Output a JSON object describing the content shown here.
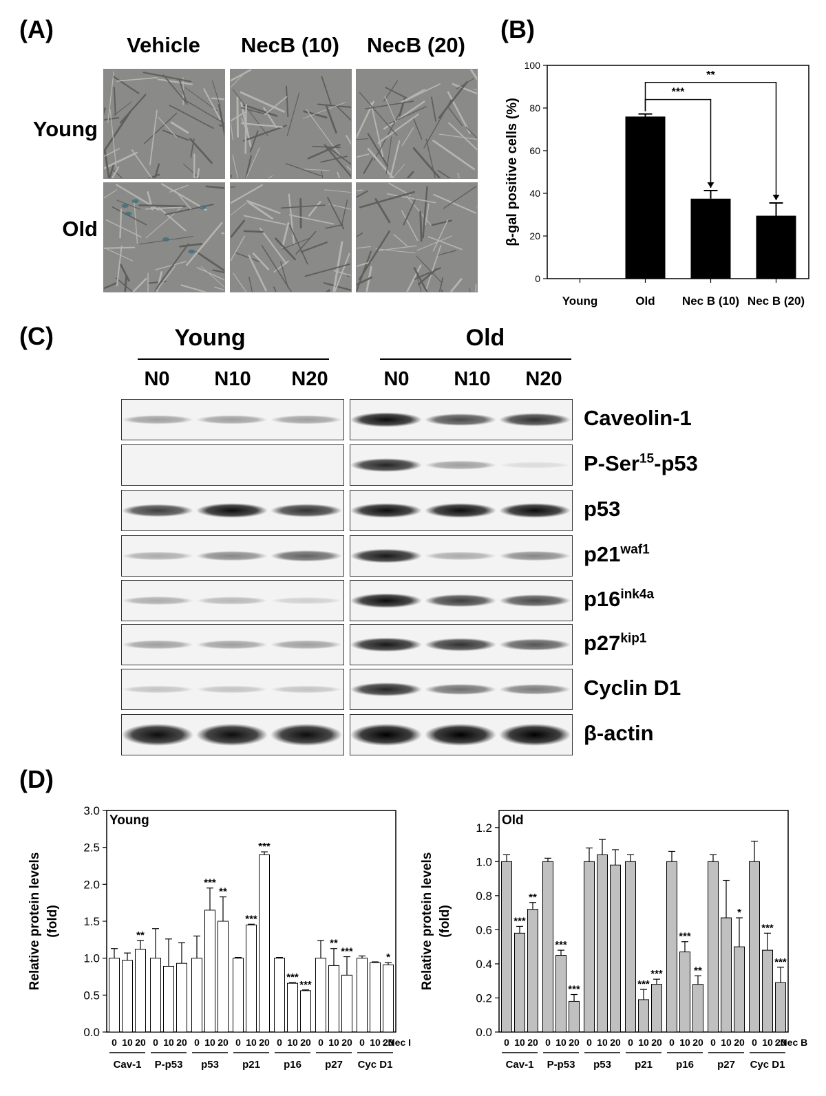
{
  "panelA": {
    "label": "(A)",
    "columns": [
      "Vehicle",
      "NecB (10)",
      "NecB (20)"
    ],
    "rows": [
      "Young",
      "Old"
    ]
  },
  "panelB": {
    "label": "(B)"
  },
  "panelC": {
    "label": "(C)",
    "groups": [
      "Young",
      "Old"
    ],
    "lanes": [
      "N0",
      "N10",
      "N20"
    ],
    "proteins": [
      {
        "base": "Caveolin-1",
        "sup": "",
        "tail": ""
      },
      {
        "base": "P-Ser",
        "sup": "15",
        "tail": "-p53"
      },
      {
        "base": "p53",
        "sup": "",
        "tail": ""
      },
      {
        "base": "p21",
        "sup": "waf1",
        "tail": ""
      },
      {
        "base": "p16",
        "sup": "ink4a",
        "tail": ""
      },
      {
        "base": "p27",
        "sup": "kip1",
        "tail": ""
      },
      {
        "base": "Cyclin D1",
        "sup": "",
        "tail": ""
      },
      {
        "base": "β-actin",
        "sup": "",
        "tail": ""
      }
    ],
    "band_intensity": {
      "young": [
        [
          0.35,
          0.35,
          0.35
        ],
        [
          0,
          0,
          0
        ],
        [
          0.75,
          0.95,
          0.8
        ],
        [
          0.3,
          0.45,
          0.6
        ],
        [
          0.3,
          0.25,
          0.15
        ],
        [
          0.35,
          0.35,
          0.35
        ],
        [
          0.2,
          0.2,
          0.2
        ],
        [
          0.95,
          0.95,
          0.95
        ]
      ],
      "old": [
        [
          0.95,
          0.7,
          0.8
        ],
        [
          0.85,
          0.35,
          0.1
        ],
        [
          0.95,
          0.95,
          0.95
        ],
        [
          0.9,
          0.3,
          0.45
        ],
        [
          0.95,
          0.75,
          0.7
        ],
        [
          0.9,
          0.8,
          0.65
        ],
        [
          0.85,
          0.55,
          0.5
        ],
        [
          1,
          1,
          1
        ]
      ]
    }
  },
  "panelD": {
    "label": "(D)"
  },
  "chart_data": [
    {
      "type": "bar",
      "ylabel": "β-gal positive cells (%)",
      "categories": [
        "Young",
        "Old",
        "Nec B (10)",
        "Nec B (20)"
      ],
      "values": [
        0,
        76,
        37.5,
        29.5
      ],
      "errors": [
        0,
        1.2,
        3.8,
        6.0
      ],
      "ylim": [
        0,
        100
      ],
      "yticks": [
        0,
        20,
        40,
        60,
        80,
        100
      ],
      "color": "#000000",
      "annotations": [
        {
          "from": "Old",
          "to": "Nec B (10)",
          "label": "***"
        },
        {
          "from": "Old",
          "to": "Nec B (20)",
          "label": "**"
        }
      ]
    },
    {
      "type": "bar",
      "ylabel": "Relative protein levels (fold)",
      "panel_title": "Young",
      "groups": [
        "Cav-1",
        "P-p53",
        "p53",
        "p21",
        "p16",
        "p27",
        "Cyc D1"
      ],
      "doses": [
        "0",
        "10",
        "20"
      ],
      "dose_suffix": ": Nec I",
      "values": [
        [
          1.0,
          0.97,
          1.12
        ],
        [
          1.0,
          0.89,
          0.93
        ],
        [
          1.0,
          1.65,
          1.5
        ],
        [
          1.0,
          1.45,
          2.4
        ],
        [
          1.0,
          0.66,
          0.56
        ],
        [
          1.0,
          0.9,
          0.77
        ],
        [
          1.0,
          0.94,
          0.91
        ]
      ],
      "errors": [
        [
          0.13,
          0.1,
          0.12
        ],
        [
          0.4,
          0.37,
          0.28
        ],
        [
          0.3,
          0.3,
          0.33
        ],
        [
          0.01,
          0.01,
          0.04
        ],
        [
          0.01,
          0.01,
          0.01
        ],
        [
          0.24,
          0.23,
          0.25
        ],
        [
          0.03,
          0.01,
          0.03
        ]
      ],
      "sig": [
        [
          "",
          "",
          "**"
        ],
        [
          "",
          "",
          ""
        ],
        [
          "",
          "***",
          "**"
        ],
        [
          "",
          "***",
          "***"
        ],
        [
          "",
          "***",
          "***"
        ],
        [
          "",
          "**",
          "***"
        ],
        [
          "",
          "",
          "*"
        ]
      ],
      "ylim": [
        0,
        3.0
      ],
      "yticks": [
        "0.0",
        "0.5",
        "1.0",
        "1.5",
        "2.0",
        "2.5",
        "3.0"
      ],
      "color": "#ffffff"
    },
    {
      "type": "bar",
      "ylabel": "Relative protein levels (fold)",
      "panel_title": "Old",
      "groups": [
        "Cav-1",
        "P-p53",
        "p53",
        "p21",
        "p16",
        "p27",
        "Cyc D1"
      ],
      "doses": [
        "0",
        "10",
        "20"
      ],
      "dose_suffix": ": Nec B",
      "values": [
        [
          1.0,
          0.58,
          0.72
        ],
        [
          1.0,
          0.45,
          0.18
        ],
        [
          1.0,
          1.04,
          0.98
        ],
        [
          1.0,
          0.19,
          0.28
        ],
        [
          1.0,
          0.47,
          0.28
        ],
        [
          1.0,
          0.67,
          0.5
        ],
        [
          1.0,
          0.48,
          0.29
        ]
      ],
      "errors": [
        [
          0.04,
          0.04,
          0.04
        ],
        [
          0.02,
          0.03,
          0.04
        ],
        [
          0.08,
          0.09,
          0.09
        ],
        [
          0.04,
          0.06,
          0.03
        ],
        [
          0.06,
          0.06,
          0.05
        ],
        [
          0.04,
          0.22,
          0.17
        ],
        [
          0.12,
          0.1,
          0.09
        ]
      ],
      "sig": [
        [
          "",
          "***",
          "**"
        ],
        [
          "",
          "***",
          "***"
        ],
        [
          "",
          "",
          ""
        ],
        [
          "",
          "***",
          "***"
        ],
        [
          "",
          "***",
          "**"
        ],
        [
          "",
          "",
          "*"
        ],
        [
          "",
          "***",
          "***"
        ]
      ],
      "ylim": [
        0,
        1.3
      ],
      "yticks": [
        "0.0",
        "0.2",
        "0.4",
        "0.6",
        "0.8",
        "1.0",
        "1.2"
      ],
      "color": "#c0c0c0"
    }
  ]
}
